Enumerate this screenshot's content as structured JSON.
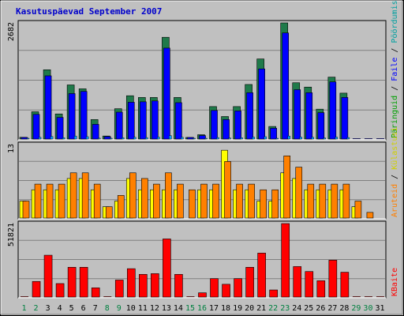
{
  "title": "Kasutuspäevad September 2007",
  "colors": {
    "background": "#c0c0c0",
    "plot_bg": "#c0c0c0",
    "title": "#0000cc",
    "hits_top": "#1f7a4a",
    "hits_side": "#00c060",
    "files": "#0000ff",
    "pages": "#00a0ff",
    "visits": "#ffff00",
    "sites": "#ff8000",
    "kbytes": "#ff0000",
    "weekend_label": "#008040",
    "weekday_label": "#000080"
  },
  "chart_data": [
    {
      "type": "bar",
      "panel": "top",
      "ymax_label": "2682",
      "ymax": 2682,
      "legend": [
        "Päringuid",
        "Faile",
        "Pöördumisi"
      ],
      "legend_colors": [
        "#00a000",
        "#0000ff",
        "#00c0c0"
      ],
      "categories": [
        "1",
        "2",
        "3",
        "4",
        "5",
        "6",
        "7",
        "8",
        "9",
        "10",
        "11",
        "12",
        "13",
        "14",
        "15",
        "16",
        "17",
        "18",
        "19",
        "20",
        "21",
        "22",
        "23",
        "24",
        "25",
        "26",
        "27",
        "28",
        "29",
        "30",
        "31"
      ],
      "series": [
        {
          "name": "Päringuid",
          "values": [
            40,
            630,
            1600,
            580,
            1250,
            1160,
            450,
            70,
            700,
            1000,
            960,
            960,
            2350,
            960,
            10,
            100,
            750,
            520,
            750,
            1260,
            1850,
            290,
            2682,
            1300,
            1200,
            690,
            1430,
            1060,
            0,
            0,
            0
          ]
        },
        {
          "name": "Faile",
          "values": [
            25,
            570,
            1460,
            500,
            1050,
            1100,
            340,
            55,
            620,
            850,
            860,
            880,
            2100,
            840,
            8,
            80,
            660,
            450,
            650,
            1070,
            1620,
            250,
            2450,
            1140,
            1070,
            610,
            1320,
            960,
            0,
            0,
            0
          ]
        },
        {
          "name": "Pöördumisi",
          "values": [
            12,
            40,
            60,
            30,
            70,
            55,
            20,
            10,
            30,
            40,
            35,
            45,
            80,
            40,
            3,
            8,
            35,
            25,
            30,
            45,
            55,
            15,
            70,
            45,
            40,
            25,
            45,
            35,
            0,
            0,
            0
          ]
        }
      ]
    },
    {
      "type": "bar",
      "panel": "middle",
      "ymax_label": "13",
      "ymax": 13,
      "legend": [
        "Külastusi",
        "Aruteid"
      ],
      "legend_colors": [
        "#ffff00",
        "#ff8000"
      ],
      "categories": [
        "1",
        "2",
        "3",
        "4",
        "5",
        "6",
        "7",
        "8",
        "9",
        "10",
        "11",
        "12",
        "13",
        "14",
        "15",
        "16",
        "17",
        "18",
        "19",
        "20",
        "21",
        "22",
        "23",
        "24",
        "25",
        "26",
        "27",
        "28",
        "29",
        "30",
        "31"
      ],
      "series": [
        {
          "name": "Külastusi",
          "values": [
            3,
            5,
            5,
            5,
            7,
            7,
            5,
            2,
            3,
            7,
            5,
            5,
            5,
            5,
            0,
            5,
            5,
            12,
            5,
            5,
            3,
            3,
            8,
            7,
            5,
            5,
            5,
            5,
            2,
            0,
            0
          ]
        },
        {
          "name": "Aruteid",
          "values": [
            3,
            6,
            6,
            6,
            8,
            8,
            6,
            2,
            4,
            8,
            7,
            6,
            8,
            6,
            5,
            6,
            6,
            10,
            6,
            6,
            5,
            5,
            11,
            9,
            6,
            6,
            6,
            6,
            3,
            1,
            0
          ]
        }
      ]
    },
    {
      "type": "bar",
      "panel": "bottom",
      "ymax_label": "51821",
      "ymax": 51821,
      "legend": [
        "KBaite"
      ],
      "legend_colors": [
        "#ff0000"
      ],
      "categories": [
        "1",
        "2",
        "3",
        "4",
        "5",
        "6",
        "7",
        "8",
        "9",
        "10",
        "11",
        "12",
        "13",
        "14",
        "15",
        "16",
        "17",
        "18",
        "19",
        "20",
        "21",
        "22",
        "23",
        "24",
        "25",
        "26",
        "27",
        "28",
        "29",
        "30",
        "31"
      ],
      "series": [
        {
          "name": "KBaite",
          "values": [
            0,
            11000,
            29500,
            9500,
            21000,
            21000,
            6500,
            0,
            12000,
            20000,
            16000,
            16500,
            41000,
            16000,
            0,
            3000,
            13000,
            9000,
            13000,
            21000,
            31000,
            5000,
            51821,
            21500,
            18000,
            11500,
            26000,
            17500,
            0,
            0,
            0
          ]
        }
      ]
    }
  ],
  "weekend_days": [
    "1",
    "2",
    "8",
    "9",
    "15",
    "16",
    "22",
    "23",
    "29",
    "30"
  ]
}
